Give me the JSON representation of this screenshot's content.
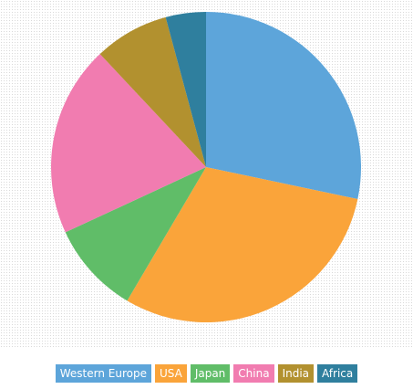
{
  "chart_data": {
    "type": "pie",
    "start_angle": "12 o'clock",
    "direction": "clockwise",
    "legend_placement": "bottom-center",
    "grid": false,
    "slices": [
      {
        "label": "Western Europe",
        "value": 28.3,
        "color": "#5da5da"
      },
      {
        "label": "USA",
        "value": 30.2,
        "color": "#faa43a"
      },
      {
        "label": "Japan",
        "value": 9.6,
        "color": "#60bd68"
      },
      {
        "label": "China",
        "value": 19.9,
        "color": "#f17cb0"
      },
      {
        "label": "India",
        "value": 7.8,
        "color": "#b2912f"
      },
      {
        "label": "Africa",
        "value": 4.2,
        "color": "#2f7f9e"
      }
    ]
  }
}
